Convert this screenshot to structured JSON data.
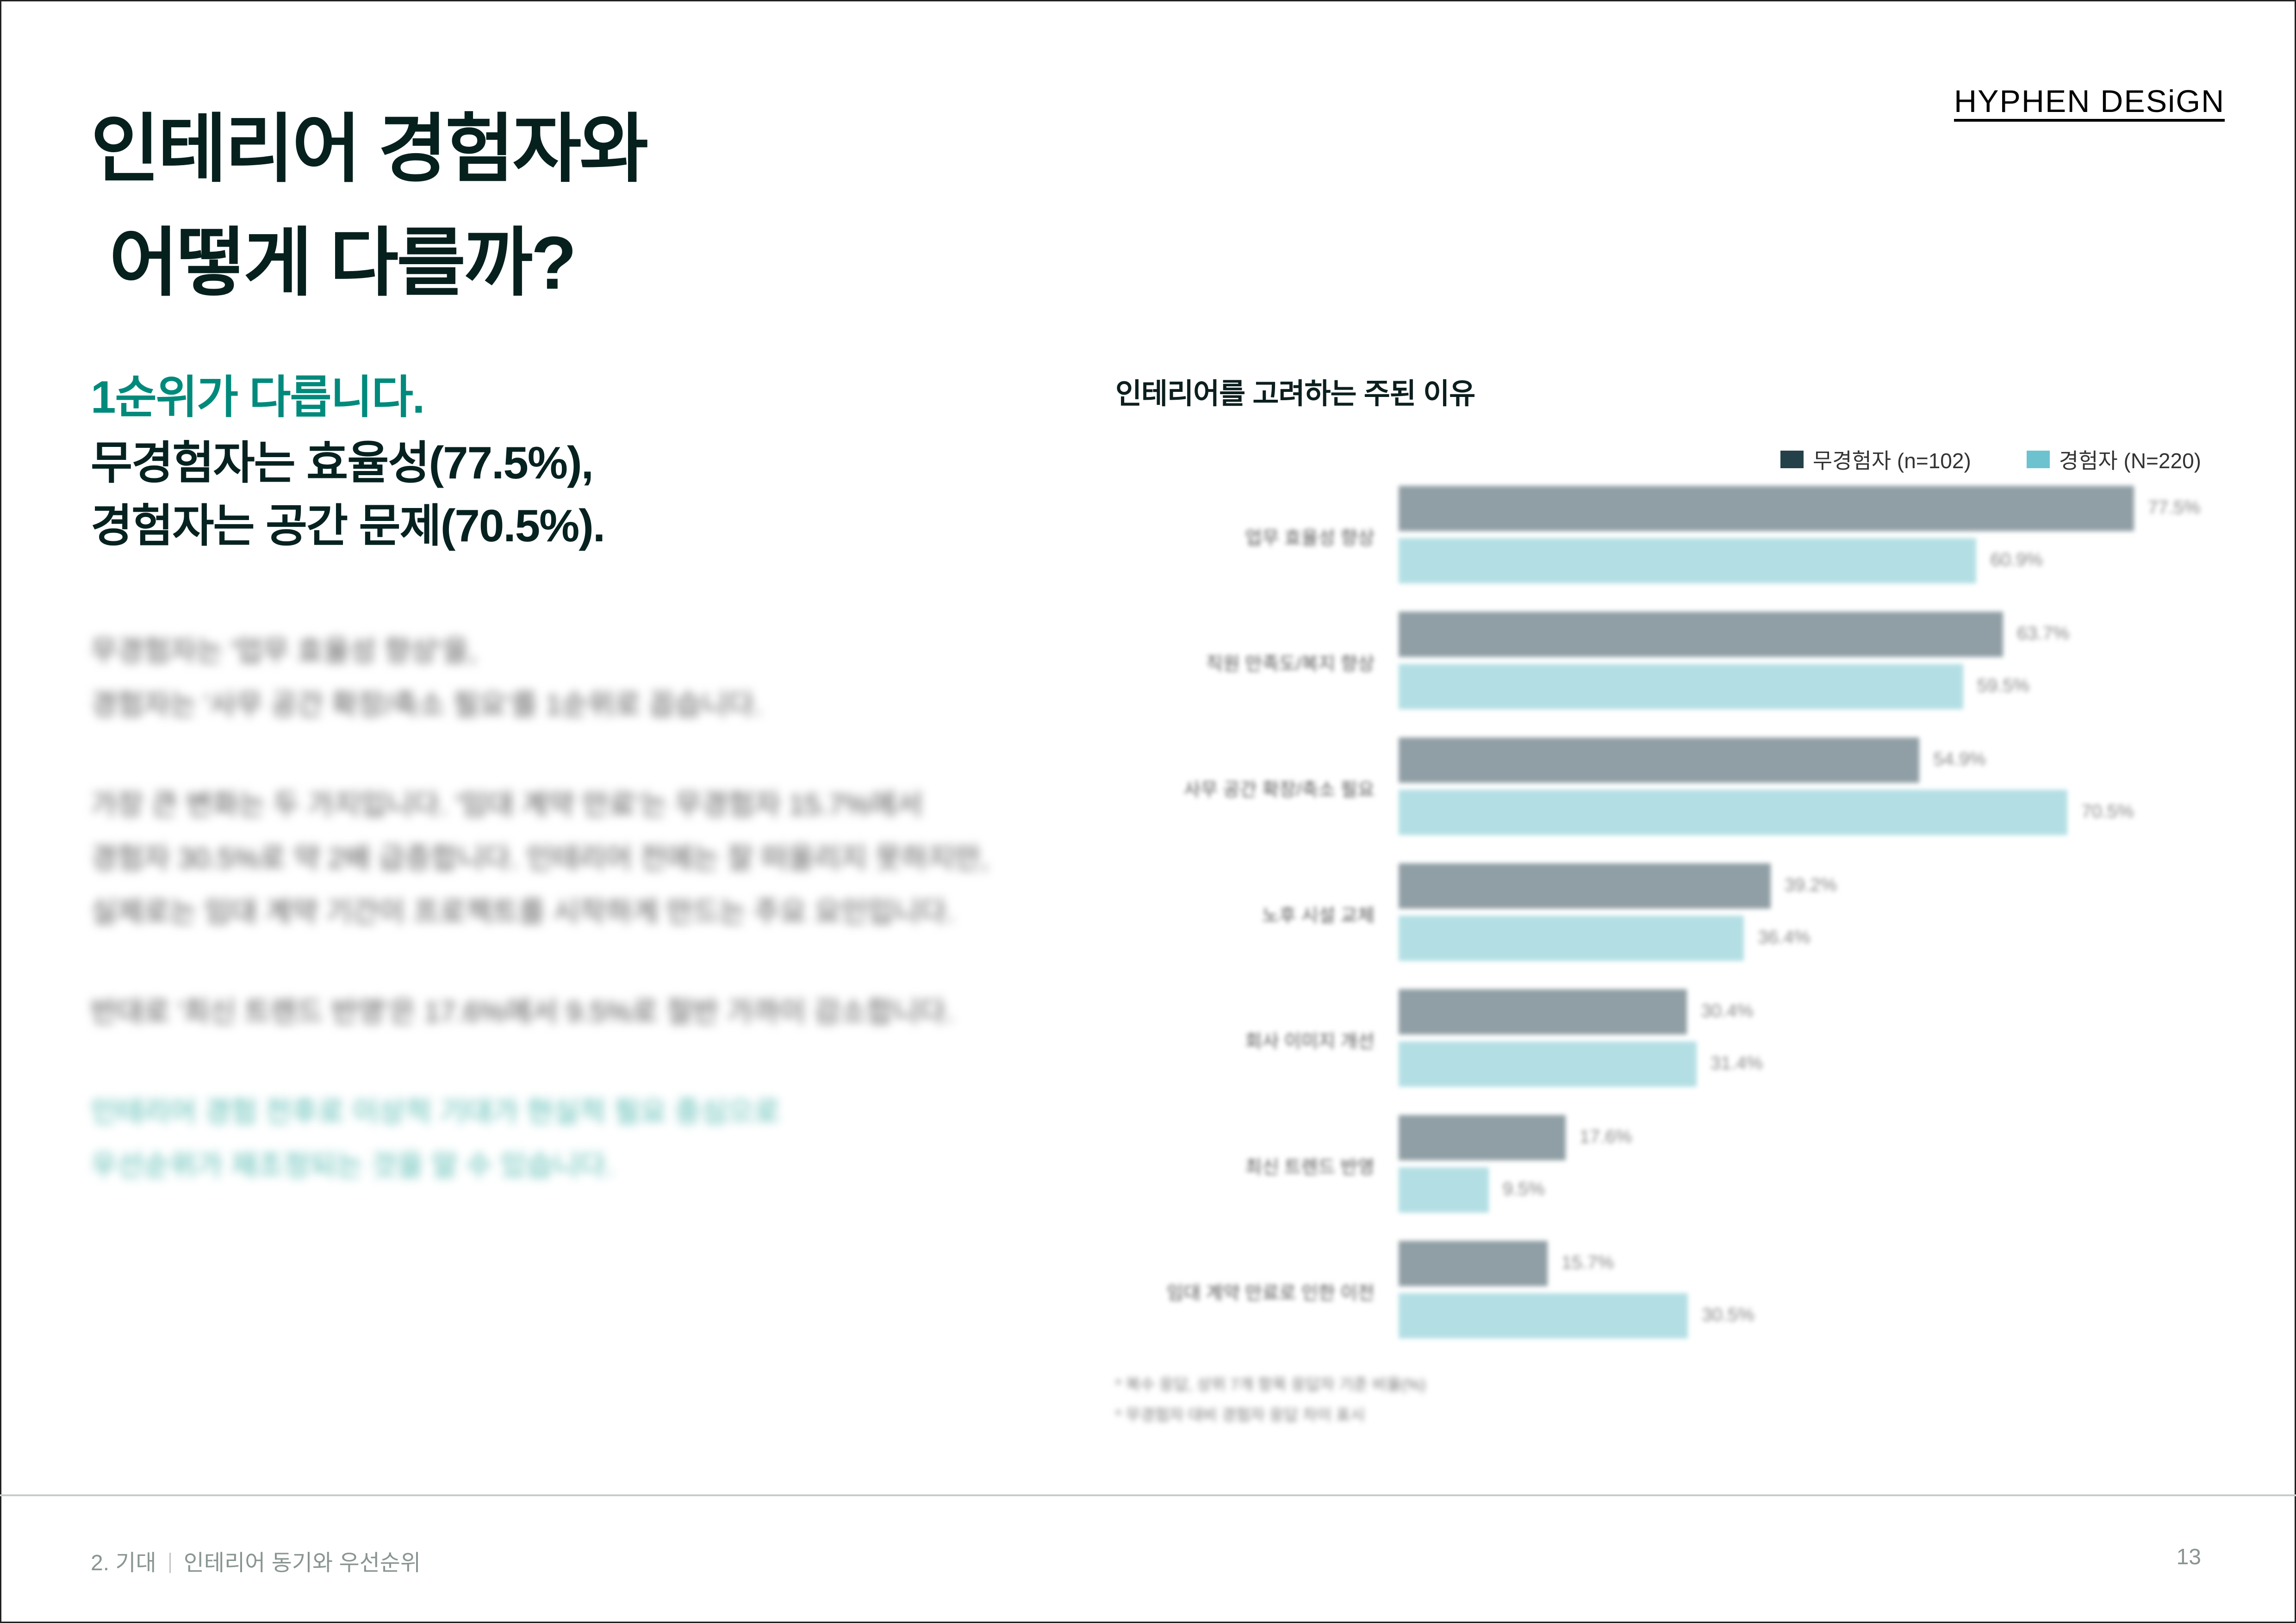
{
  "brand": {
    "logo": "HYPHEN DESiGN"
  },
  "header": {
    "title_line1": "인테리어 경험자와",
    "title_line2": "어떻게 다를까?"
  },
  "summary": {
    "accent": "1순위가 다릅니다.",
    "line1": "무경험자는 효율성(77.5%),",
    "line2": "경험자는 공간 문제(70.5%)."
  },
  "body": {
    "p1_line1": "무경험자는 '업무 효율성 향상'을,",
    "p1_line2": "경험자는 '사무 공간 확장/축소 필요'를 1순위로 꼽습니다.",
    "p2_line1": "가장 큰 변화는 두 가지입니다. '임대 계약 만료'는 무경험자 15.7%에서",
    "p2_line2": "경험자 30.5%로 약 2배 급증합니다. 인테리어 전에는 잘 떠올리지 못하지만,",
    "p2_line3": "실제로는 임대 계약 기간이 프로젝트를 시작하게 만드는 주요 요인입니다.",
    "p3_line1": "반대로 '최신 트렌드 반영'은 17.6%에서 9.5%로 절반 가까이 감소합니다.",
    "highlight_line1": "인테리어 경험 전후로 이상적 기대가 현실적 필요 중심으로",
    "highlight_line2": "우선순위가 재조정되는 것을 알 수 있습니다."
  },
  "chart": {
    "title": "인테리어를 고려하는 주된 이유",
    "legend": [
      {
        "label": "무경험자 (n=102)",
        "color": "#24414a"
      },
      {
        "label": "경험자 (N=220)",
        "color": "#6cc3cf"
      }
    ],
    "notes": [
      "* 복수 응답, 상위 7개 항목 응답자 기준 비율(%)",
      "* 무경험자 대비 경험자 응답 차이 표시"
    ]
  },
  "chart_data": {
    "type": "bar",
    "orientation": "horizontal",
    "title": "인테리어를 고려하는 주된 이유",
    "categories": [
      "업무 효율성 향상",
      "직원 만족도/복지 향상",
      "사무 공간 확장/축소 필요",
      "노후 시설 교체",
      "회사 이미지 개선",
      "최신 트렌드 반영",
      "임대 계약 만료로 인한 이전"
    ],
    "series": [
      {
        "name": "무경험자 (n=102)",
        "color": "#909fa5",
        "values": [
          77.5,
          63.7,
          54.9,
          39.2,
          30.4,
          17.6,
          15.7
        ]
      },
      {
        "name": "경험자 (N=220)",
        "color": "#b3dfe4",
        "values": [
          60.9,
          59.5,
          70.5,
          36.4,
          31.4,
          9.5,
          30.5
        ]
      }
    ],
    "xlabel": "",
    "ylabel": "",
    "xlim": [
      0,
      100
    ],
    "grid": false,
    "legend_position": "top-right"
  },
  "footer": {
    "section": "2. 기대",
    "topic": "인테리어 동기와 우선순위",
    "page_number": "13"
  }
}
